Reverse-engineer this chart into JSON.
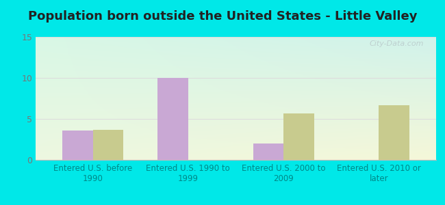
{
  "title": "Population born outside the United States - Little Valley",
  "categories": [
    "Entered U.S. before\n1990",
    "Entered U.S. 1990 to\n1999",
    "Entered U.S. 2000 to\n2009",
    "Entered U.S. 2010 or\nlater"
  ],
  "native_values": [
    3.6,
    10.0,
    2.0,
    0.0
  ],
  "foreign_values": [
    3.7,
    0.0,
    5.7,
    6.7
  ],
  "native_color": "#c9a8d4",
  "foreign_color": "#c8cb8e",
  "ylim": [
    0,
    15
  ],
  "yticks": [
    0,
    5,
    10,
    15
  ],
  "bar_width": 0.32,
  "bg_outer": "#00e8e8",
  "title_fontsize": 13,
  "label_fontsize": 8.5,
  "tick_fontsize": 9,
  "legend_fontsize": 9.5,
  "watermark_text": "City-Data.com",
  "xlabel_color": "#008888",
  "ytick_color": "#777777",
  "grid_color": "#dddddd",
  "bg_grad_topleft": [
    0.85,
    0.97,
    0.9
  ],
  "bg_grad_topright": [
    0.82,
    0.95,
    0.92
  ],
  "bg_grad_bottomleft": [
    0.93,
    0.97,
    0.88
  ],
  "bg_grad_bottomright": [
    0.96,
    0.97,
    0.85
  ]
}
